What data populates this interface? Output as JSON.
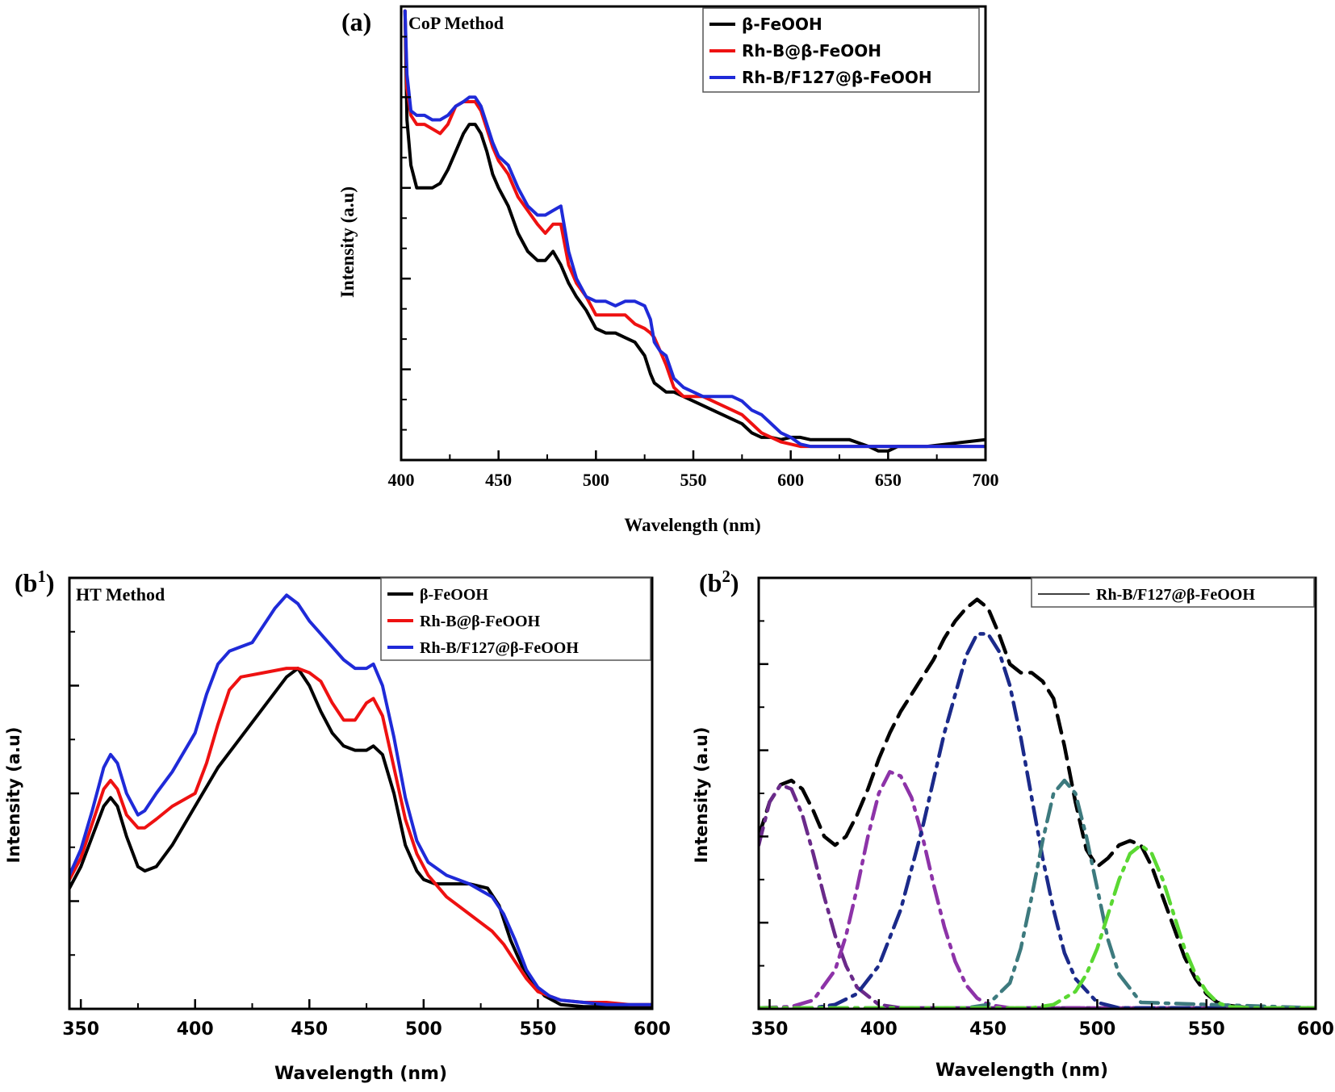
{
  "figure_title": "",
  "chart_data": [
    {
      "id": "a",
      "panel_label": "(a)",
      "type": "line",
      "annotation": "CoP Method",
      "xlabel": "Wavelength (nm)",
      "ylabel": "Intensity (a.u)",
      "xlim": [
        400,
        700
      ],
      "ylim": [
        0,
        10
      ],
      "xticks": [
        400,
        450,
        500,
        550,
        600,
        650,
        700
      ],
      "grid": false,
      "legend_position": "top-right",
      "series": [
        {
          "name": "β-FeOOH",
          "color": "#000000",
          "style": "solid",
          "x": [
            402,
            403,
            405,
            408,
            412,
            416,
            420,
            424,
            428,
            432,
            435,
            438,
            441,
            444,
            447,
            450,
            455,
            460,
            465,
            470,
            474,
            478,
            482,
            486,
            490,
            495,
            500,
            505,
            510,
            515,
            520,
            525,
            528,
            530,
            533,
            536,
            540,
            545,
            550,
            555,
            560,
            565,
            570,
            575,
            580,
            585,
            590,
            595,
            600,
            605,
            610,
            620,
            630,
            640,
            645,
            650,
            655,
            660,
            670,
            680,
            690,
            700
          ],
          "y": [
            9.9,
            7.5,
            6.5,
            6.0,
            6.0,
            6.0,
            6.1,
            6.4,
            6.8,
            7.2,
            7.4,
            7.4,
            7.2,
            6.8,
            6.3,
            6.0,
            5.6,
            5.0,
            4.6,
            4.4,
            4.4,
            4.6,
            4.3,
            3.9,
            3.6,
            3.3,
            2.9,
            2.8,
            2.8,
            2.7,
            2.6,
            2.3,
            1.9,
            1.7,
            1.6,
            1.5,
            1.5,
            1.4,
            1.3,
            1.2,
            1.1,
            1.0,
            0.9,
            0.8,
            0.6,
            0.5,
            0.5,
            0.45,
            0.5,
            0.5,
            0.45,
            0.45,
            0.45,
            0.3,
            0.2,
            0.2,
            0.3,
            0.3,
            0.3,
            0.35,
            0.4,
            0.45
          ]
        },
        {
          "name": "Rh-B@β-FeOOH",
          "color": "#ee1111",
          "style": "solid",
          "x": [
            402,
            403,
            405,
            408,
            412,
            416,
            420,
            424,
            428,
            432,
            435,
            438,
            441,
            444,
            447,
            450,
            455,
            460,
            465,
            470,
            474,
            478,
            482,
            486,
            490,
            495,
            500,
            505,
            510,
            515,
            520,
            525,
            528,
            530,
            533,
            536,
            540,
            545,
            550,
            555,
            560,
            565,
            570,
            575,
            580,
            585,
            590,
            595,
            600,
            605,
            610,
            620,
            630,
            640,
            650,
            660,
            670,
            680,
            690,
            700
          ],
          "y": [
            9.9,
            8.2,
            7.6,
            7.4,
            7.4,
            7.3,
            7.2,
            7.4,
            7.8,
            7.9,
            7.9,
            7.9,
            7.7,
            7.3,
            6.9,
            6.6,
            6.3,
            5.8,
            5.5,
            5.2,
            5.0,
            5.2,
            5.2,
            4.3,
            3.9,
            3.6,
            3.2,
            3.2,
            3.2,
            3.2,
            3.0,
            2.9,
            2.8,
            2.7,
            2.4,
            2.1,
            1.6,
            1.4,
            1.4,
            1.4,
            1.3,
            1.2,
            1.1,
            1.0,
            0.8,
            0.6,
            0.5,
            0.4,
            0.35,
            0.3,
            0.3,
            0.3,
            0.3,
            0.3,
            0.3,
            0.3,
            0.3,
            0.3,
            0.3,
            0.3
          ]
        },
        {
          "name": "Rh-B/F127@β-FeOOH",
          "color": "#1f2ad8",
          "style": "solid",
          "x": [
            402,
            403,
            405,
            408,
            412,
            416,
            420,
            424,
            428,
            432,
            435,
            438,
            441,
            444,
            447,
            450,
            455,
            460,
            465,
            470,
            474,
            478,
            482,
            486,
            490,
            495,
            500,
            505,
            510,
            515,
            520,
            525,
            528,
            530,
            533,
            536,
            540,
            545,
            550,
            555,
            560,
            565,
            570,
            575,
            580,
            585,
            590,
            595,
            600,
            605,
            610,
            620,
            630,
            640,
            650,
            660,
            670,
            680,
            690,
            700
          ],
          "y": [
            9.9,
            8.5,
            7.7,
            7.6,
            7.6,
            7.5,
            7.5,
            7.6,
            7.8,
            7.9,
            8.0,
            8.0,
            7.8,
            7.4,
            7.0,
            6.7,
            6.5,
            6.0,
            5.6,
            5.4,
            5.4,
            5.5,
            5.6,
            4.6,
            4.0,
            3.6,
            3.5,
            3.5,
            3.4,
            3.5,
            3.5,
            3.4,
            3.1,
            2.6,
            2.4,
            2.3,
            1.8,
            1.6,
            1.5,
            1.4,
            1.4,
            1.4,
            1.4,
            1.3,
            1.1,
            1.0,
            0.8,
            0.6,
            0.5,
            0.35,
            0.3,
            0.3,
            0.3,
            0.3,
            0.3,
            0.3,
            0.3,
            0.3,
            0.3,
            0.3
          ]
        }
      ]
    },
    {
      "id": "b1",
      "panel_label": "(b",
      "panel_label_sup": "1",
      "type": "line",
      "annotation": "HT Method",
      "xlabel": "Wavelength (nm)",
      "ylabel": "Intensity (a.u)",
      "xlim": [
        345,
        600
      ],
      "ylim": [
        0,
        10
      ],
      "xticks": [
        350,
        400,
        450,
        500,
        550,
        600
      ],
      "grid": false,
      "legend_position": "top-right",
      "series": [
        {
          "name": "β-FeOOH",
          "color": "#000000",
          "style": "solid",
          "x": [
            345,
            350,
            355,
            360,
            363,
            366,
            370,
            375,
            378,
            383,
            390,
            400,
            410,
            420,
            430,
            440,
            445,
            450,
            455,
            460,
            465,
            470,
            475,
            478,
            482,
            487,
            492,
            497,
            500,
            505,
            510,
            520,
            528,
            533,
            538,
            543,
            548,
            553,
            560,
            570,
            580,
            590,
            600
          ],
          "y": [
            2.8,
            3.3,
            4.0,
            4.7,
            4.9,
            4.7,
            4.0,
            3.3,
            3.2,
            3.3,
            3.8,
            4.7,
            5.6,
            6.3,
            7.0,
            7.7,
            7.9,
            7.5,
            6.9,
            6.4,
            6.1,
            6.0,
            6.0,
            6.1,
            5.9,
            5.0,
            3.8,
            3.2,
            3.0,
            2.9,
            2.9,
            2.9,
            2.8,
            2.4,
            1.6,
            1.0,
            0.6,
            0.3,
            0.1,
            0.05,
            0.05,
            0.05,
            0.05
          ]
        },
        {
          "name": "Rh-B@β-FeOOH",
          "color": "#ee1111",
          "style": "solid",
          "x": [
            345,
            350,
            355,
            360,
            363,
            366,
            370,
            375,
            378,
            383,
            390,
            400,
            405,
            410,
            415,
            420,
            430,
            440,
            445,
            450,
            455,
            460,
            465,
            470,
            475,
            478,
            482,
            487,
            492,
            497,
            502,
            510,
            520,
            530,
            535,
            540,
            545,
            550,
            555,
            560,
            570,
            580,
            590,
            600
          ],
          "y": [
            3.0,
            3.5,
            4.3,
            5.1,
            5.3,
            5.1,
            4.5,
            4.2,
            4.2,
            4.4,
            4.7,
            5.0,
            5.7,
            6.6,
            7.4,
            7.7,
            7.8,
            7.9,
            7.9,
            7.8,
            7.6,
            7.1,
            6.7,
            6.7,
            7.1,
            7.2,
            6.8,
            5.6,
            4.4,
            3.6,
            3.1,
            2.6,
            2.2,
            1.8,
            1.5,
            1.1,
            0.7,
            0.4,
            0.3,
            0.2,
            0.15,
            0.15,
            0.1,
            0.1
          ]
        },
        {
          "name": "Rh-B/F127@β-FeOOH",
          "color": "#1f2ad8",
          "style": "solid",
          "x": [
            345,
            350,
            355,
            360,
            363,
            366,
            370,
            375,
            378,
            383,
            390,
            400,
            405,
            410,
            415,
            420,
            425,
            430,
            435,
            440,
            445,
            450,
            455,
            460,
            465,
            470,
            475,
            478,
            482,
            487,
            492,
            497,
            502,
            510,
            520,
            530,
            535,
            540,
            545,
            550,
            555,
            560,
            570,
            580,
            590,
            600
          ],
          "y": [
            3.1,
            3.7,
            4.6,
            5.6,
            5.9,
            5.7,
            5.0,
            4.5,
            4.6,
            5.0,
            5.5,
            6.4,
            7.3,
            8.0,
            8.3,
            8.4,
            8.5,
            8.9,
            9.3,
            9.6,
            9.4,
            9.0,
            8.7,
            8.4,
            8.1,
            7.9,
            7.9,
            8.0,
            7.5,
            6.3,
            4.9,
            3.9,
            3.4,
            3.1,
            2.9,
            2.6,
            2.2,
            1.6,
            0.9,
            0.5,
            0.3,
            0.2,
            0.15,
            0.1,
            0.1,
            0.1
          ]
        }
      ]
    },
    {
      "id": "b2",
      "panel_label": "(b",
      "panel_label_sup": "2",
      "type": "line",
      "annotation": "",
      "xlabel": "Wavelength (nm)",
      "ylabel": "Intensity (a.u)",
      "xlim": [
        345,
        600
      ],
      "ylim": [
        0,
        10
      ],
      "xticks": [
        350,
        400,
        450,
        500,
        550,
        600
      ],
      "grid": false,
      "legend_position": "top-right",
      "legend": [
        "Rh-B/F127@β-FeOOH"
      ],
      "series": [
        {
          "name": "Rh-B/F127@β-FeOOH",
          "color": "#000000",
          "style": "dashed",
          "x": [
            345,
            350,
            355,
            360,
            365,
            370,
            375,
            380,
            385,
            390,
            395,
            400,
            405,
            410,
            415,
            420,
            425,
            430,
            435,
            440,
            445,
            450,
            455,
            460,
            465,
            470,
            475,
            480,
            485,
            490,
            495,
            500,
            505,
            510,
            515,
            520,
            525,
            530,
            535,
            540,
            545,
            550,
            555,
            560,
            570,
            580,
            590,
            600
          ],
          "y": [
            4.0,
            4.8,
            5.2,
            5.3,
            5.1,
            4.6,
            4.0,
            3.8,
            4.0,
            4.5,
            5.1,
            5.8,
            6.4,
            6.9,
            7.3,
            7.7,
            8.1,
            8.6,
            9.0,
            9.3,
            9.5,
            9.3,
            8.7,
            8.0,
            7.8,
            7.8,
            7.6,
            7.2,
            6.1,
            4.8,
            3.7,
            3.3,
            3.5,
            3.8,
            3.9,
            3.8,
            3.3,
            2.6,
            1.9,
            1.2,
            0.7,
            0.35,
            0.15,
            0.08,
            0.02,
            0.02,
            0.02,
            0.02
          ]
        },
        {
          "name": "",
          "color": "#6a2a8a",
          "style": "dashdot",
          "x": [
            345,
            350,
            355,
            360,
            365,
            370,
            375,
            380,
            385,
            390,
            400,
            410,
            420,
            430,
            440,
            450,
            460,
            600
          ],
          "y": [
            3.8,
            4.8,
            5.2,
            5.1,
            4.5,
            3.6,
            2.6,
            1.7,
            1.0,
            0.5,
            0.1,
            0.02,
            0.02,
            0.02,
            0.02,
            0.02,
            0.02,
            0.02
          ]
        },
        {
          "name": "",
          "color": "#8d33a8",
          "style": "dashdot",
          "x": [
            345,
            360,
            370,
            380,
            385,
            390,
            395,
            400,
            405,
            410,
            415,
            420,
            425,
            430,
            435,
            440,
            445,
            450,
            460,
            600
          ],
          "y": [
            0.02,
            0.05,
            0.2,
            0.9,
            1.7,
            2.8,
            4.0,
            5.0,
            5.5,
            5.4,
            4.9,
            4.0,
            2.9,
            1.9,
            1.1,
            0.55,
            0.25,
            0.1,
            0.02,
            0.02
          ]
        },
        {
          "name": "",
          "color": "#1b2a8a",
          "style": "dashdot",
          "x": [
            345,
            370,
            380,
            390,
            400,
            410,
            420,
            430,
            440,
            445,
            450,
            455,
            460,
            465,
            470,
            475,
            480,
            485,
            490,
            500,
            510,
            600
          ],
          "y": [
            0.02,
            0.02,
            0.1,
            0.35,
            1.0,
            2.3,
            4.2,
            6.4,
            8.2,
            8.7,
            8.7,
            8.3,
            7.5,
            6.3,
            4.9,
            3.5,
            2.3,
            1.3,
            0.7,
            0.15,
            0.02,
            0.02
          ]
        },
        {
          "name": "",
          "color": "#3d7a7e",
          "style": "dashdot",
          "x": [
            345,
            440,
            450,
            460,
            465,
            470,
            475,
            480,
            485,
            490,
            495,
            500,
            505,
            510,
            520,
            600
          ],
          "y": [
            0.02,
            0.02,
            0.1,
            0.6,
            1.4,
            2.6,
            3.9,
            5.0,
            5.3,
            5.0,
            4.0,
            2.8,
            1.6,
            0.8,
            0.15,
            0.02
          ]
        },
        {
          "name": "",
          "color": "#5ad832",
          "style": "dashdot",
          "x": [
            345,
            470,
            480,
            490,
            495,
            500,
            505,
            510,
            515,
            520,
            525,
            530,
            535,
            540,
            545,
            550,
            555,
            560,
            570,
            600
          ],
          "y": [
            0.02,
            0.02,
            0.1,
            0.4,
            0.8,
            1.4,
            2.2,
            3.0,
            3.6,
            3.8,
            3.6,
            3.0,
            2.2,
            1.4,
            0.8,
            0.4,
            0.15,
            0.05,
            0.02,
            0.02
          ]
        }
      ]
    }
  ]
}
